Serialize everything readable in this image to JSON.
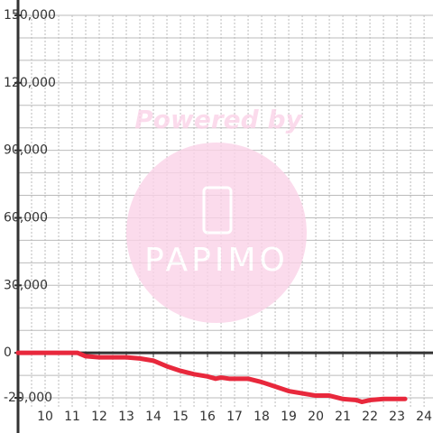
{
  "chart_data": {
    "type": "line",
    "annotations": [
      "Powered by",
      "PAPIMO"
    ],
    "x": [
      9,
      11.2,
      11.5,
      12,
      13,
      13.5,
      14,
      14.5,
      15,
      15.5,
      16,
      16.3,
      16.5,
      16.8,
      17.5,
      18,
      18.5,
      19,
      19.5,
      20,
      20.5,
      21,
      21.5,
      21.7,
      22,
      22.5,
      23.3
    ],
    "series": [
      {
        "color": "#e8283c",
        "values": [
          0,
          0,
          -1500,
          -2000,
          -2000,
          -2500,
          -3500,
          -6000,
          -8000,
          -9500,
          -10500,
          -11500,
          -11000,
          -11500,
          -11500,
          -13000,
          -15000,
          -17000,
          -18000,
          -19000,
          -19000,
          -20500,
          -21000,
          -21800,
          -21000,
          -20500,
          -20500
        ]
      }
    ],
    "xlim": [
      9,
      24.33
    ],
    "ylim": [
      -24000,
      150000
    ],
    "xticks": [
      10,
      11,
      12,
      13,
      14,
      15,
      16,
      17,
      18,
      19,
      20,
      21,
      22,
      23,
      24
    ],
    "yticks": [
      {
        "value": -20000,
        "label": "-20,000"
      },
      0,
      {
        "value": 30000,
        "label": "30,000"
      },
      {
        "value": 60000,
        "label": "60,000"
      },
      {
        "value": 90000,
        "label": "90,000"
      },
      {
        "value": 120000,
        "label": "120,000"
      },
      {
        "value": 150000,
        "label": "150,000"
      }
    ],
    "ygrid": [
      -20000,
      -10000,
      10000,
      20000,
      30000,
      40000,
      50000,
      60000,
      70000,
      80000,
      90000,
      100000,
      110000,
      120000,
      130000,
      140000,
      150000
    ],
    "xgrid": [
      9.5,
      10,
      10.5,
      11,
      11.5,
      12,
      12.5,
      13,
      13.5,
      14,
      14.5,
      15,
      15.5,
      16,
      16.5,
      17,
      17.5,
      18,
      18.5,
      19,
      19.5,
      20,
      20.5,
      21,
      21.5,
      22,
      22.5,
      23,
      23.5,
      24
    ]
  }
}
